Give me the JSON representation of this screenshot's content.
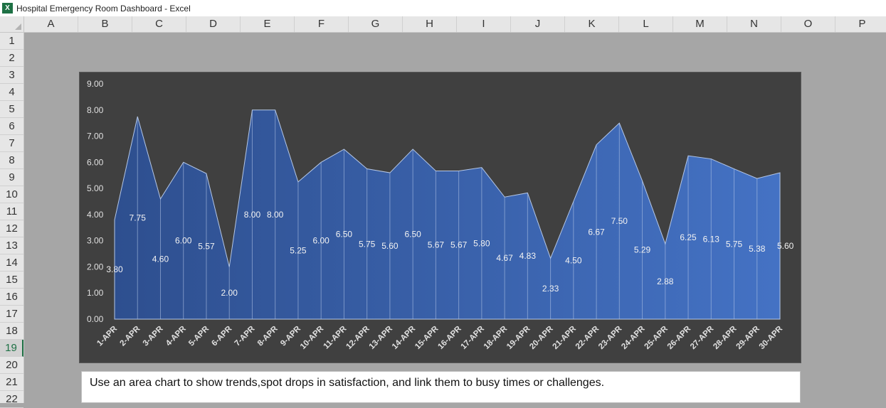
{
  "window": {
    "app_icon_letter": "X",
    "title": "Hospital Emergency Room Dashboard - Excel"
  },
  "sheet": {
    "columns": [
      "A",
      "B",
      "C",
      "D",
      "E",
      "F",
      "G",
      "H",
      "I",
      "J",
      "K",
      "L",
      "M",
      "N",
      "O",
      "P"
    ],
    "rows": [
      "1",
      "2",
      "3",
      "4",
      "5",
      "6",
      "7",
      "8",
      "9",
      "10",
      "11",
      "12",
      "13",
      "14",
      "15",
      "16",
      "17",
      "18",
      "19",
      "20",
      "21",
      "22"
    ],
    "active_row": "19"
  },
  "note": {
    "text": "Use an area chart to show trends,spot drops in satisfaction, and link them to busy times or challenges."
  },
  "chart_data": {
    "type": "area",
    "title": "",
    "xlabel": "",
    "ylabel": "",
    "categories": [
      "1-APR",
      "2-APR",
      "3-APR",
      "4-APR",
      "5-APR",
      "6-APR",
      "7-APR",
      "8-APR",
      "9-APR",
      "10-APR",
      "11-APR",
      "12-APR",
      "13-APR",
      "14-APR",
      "15-APR",
      "16-APR",
      "17-APR",
      "18-APR",
      "19-APR",
      "20-APR",
      "21-APR",
      "22-APR",
      "23-APR",
      "24-APR",
      "25-APR",
      "26-APR",
      "27-APR",
      "28-APR",
      "29-APR",
      "30-APR"
    ],
    "values": [
      3.8,
      7.75,
      4.6,
      6.0,
      5.57,
      2.0,
      8.0,
      8.0,
      5.25,
      6.0,
      6.5,
      5.75,
      5.6,
      6.5,
      5.67,
      5.67,
      5.8,
      4.67,
      4.83,
      2.33,
      4.5,
      6.67,
      7.5,
      5.29,
      2.88,
      6.25,
      6.13,
      5.75,
      5.38,
      5.6
    ],
    "data_labels": [
      "3.80",
      "7.75",
      "4.60",
      "6.00",
      "5.57",
      "2.00",
      "8.00",
      "8.00",
      "5.25",
      "6.00",
      "6.50",
      "5.75",
      "5.60",
      "6.50",
      "5.67",
      "5.67",
      "5.80",
      "4.67",
      "4.83",
      "2.33",
      "4.50",
      "6.67",
      "7.50",
      "5.29",
      "2.88",
      "6.25",
      "6.13",
      "5.75",
      "5.38",
      "5.60"
    ],
    "y_ticks": [
      "0.00",
      "1.00",
      "2.00",
      "3.00",
      "4.00",
      "5.00",
      "6.00",
      "7.00",
      "8.00",
      "9.00"
    ],
    "ylim": [
      0,
      9
    ],
    "grid": false,
    "legend": "none",
    "colors": {
      "background": "#404040",
      "fill_start": "#2e4f8f",
      "fill_end": "#4472c4",
      "outline": "#b4c7e7",
      "text": "#e0e0e0"
    }
  }
}
